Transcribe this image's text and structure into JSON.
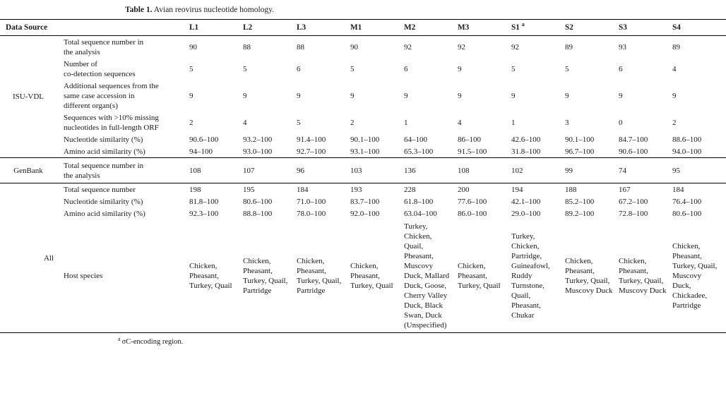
{
  "caption": {
    "label": "Table 1.",
    "text": " Avian reovirus nucleotide homology."
  },
  "header": {
    "data_source": "Data Source",
    "columns": [
      {
        "label": "L1",
        "sup": ""
      },
      {
        "label": "L2",
        "sup": ""
      },
      {
        "label": "L3",
        "sup": ""
      },
      {
        "label": "M1",
        "sup": ""
      },
      {
        "label": "M2",
        "sup": ""
      },
      {
        "label": "M3",
        "sup": ""
      },
      {
        "label": "S1",
        "sup": "a"
      },
      {
        "label": "S2",
        "sup": ""
      },
      {
        "label": "S3",
        "sup": ""
      },
      {
        "label": "S4",
        "sup": ""
      }
    ]
  },
  "sections": [
    {
      "label": "ISU-VDL",
      "rows": [
        {
          "label": "Total sequence number in\nthe analysis",
          "values": [
            "90",
            "88",
            "88",
            "90",
            "92",
            "92",
            "92",
            "89",
            "93",
            "89"
          ]
        },
        {
          "label": "Number of\nco-detection sequences",
          "values": [
            "5",
            "5",
            "6",
            "5",
            "6",
            "9",
            "5",
            "5",
            "6",
            "4"
          ]
        },
        {
          "label": "Additional sequences from the\nsame case accession in\ndifferent organ(s)",
          "values": [
            "9",
            "9",
            "9",
            "9",
            "9",
            "9",
            "9",
            "9",
            "9",
            "9"
          ]
        },
        {
          "label": "Sequences with >10% missing\nnucleotides in full-length ORF",
          "values": [
            "2",
            "4",
            "5",
            "2",
            "1",
            "4",
            "1",
            "3",
            "0",
            "2"
          ]
        },
        {
          "label": "Nucleotide similarity (%)",
          "values": [
            "90.6–100",
            "93.2–100",
            "91.4–100",
            "90.1–100",
            "64–100",
            "86–100",
            "42.6–100",
            "90.1–100",
            "84.7–100",
            "88.6–100"
          ]
        },
        {
          "label": "Amino acid similarity (%)",
          "values": [
            "94–100",
            "93.0–100",
            "92.7–100",
            "93.1–100",
            "65.3–100",
            "91.5–100",
            "31.8–100",
            "96.7–100",
            "90.6–100",
            "94.0–100"
          ]
        }
      ]
    },
    {
      "label": "GenBank",
      "rows": [
        {
          "label": "Total sequence number in\nthe analysis",
          "values": [
            "108",
            "107",
            "96",
            "103",
            "136",
            "108",
            "102",
            "99",
            "74",
            "95"
          ]
        }
      ]
    },
    {
      "label": "All",
      "rows": [
        {
          "label": "Total sequence number",
          "values": [
            "198",
            "195",
            "184",
            "193",
            "228",
            "200",
            "194",
            "188",
            "167",
            "184"
          ]
        },
        {
          "label": "Nucleotide similarity (%)",
          "values": [
            "81.8–100",
            "80.6–100",
            "71.0–100",
            "83.7–100",
            "61.8–100",
            "77.6–100",
            "42.1–100",
            "85.2–100",
            "67.2–100",
            "76.4–100"
          ]
        },
        {
          "label": "Amino acid similarity (%)",
          "values": [
            "92.3–100",
            "88.8–100",
            "78.0–100",
            "92.0–100",
            "63.04–100",
            "86.0–100",
            "29.0–100",
            "89.2–100",
            "72.8–100",
            "80.6–100"
          ]
        },
        {
          "label": "Host species",
          "values": [
            "Chicken, Pheasant, Turkey, Quail",
            "Chicken, Pheasant, Turkey, Quail, Partridge",
            "Chicken, Pheasant, Turkey, Quail, Partridge",
            "Chicken, Pheasant, Turkey, Quail",
            "Turkey, Chicken, Quail, Pheasant, Muscovy Duck, Mallard Duck, Goose, Cherry Valley Duck, Black Swan, Duck (Unspecified)",
            "Chicken, Pheasant, Turkey, Quail",
            "Turkey, Chicken, Partridge, Guineafowl, Ruddy Turnstone, Quail, Pheasant, Chukar",
            "Chicken, Pheasant, Turkey, Quail, Muscovy Duck",
            "Chicken, Pheasant, Turkey, Quail, Muscovy Duck",
            "Chicken, Pheasant, Turkey, Quail, Muscovy Duck, Chickadee, Partridge"
          ]
        }
      ]
    }
  ],
  "footnote": {
    "sup": "a",
    "text": "σC-encoding region."
  }
}
